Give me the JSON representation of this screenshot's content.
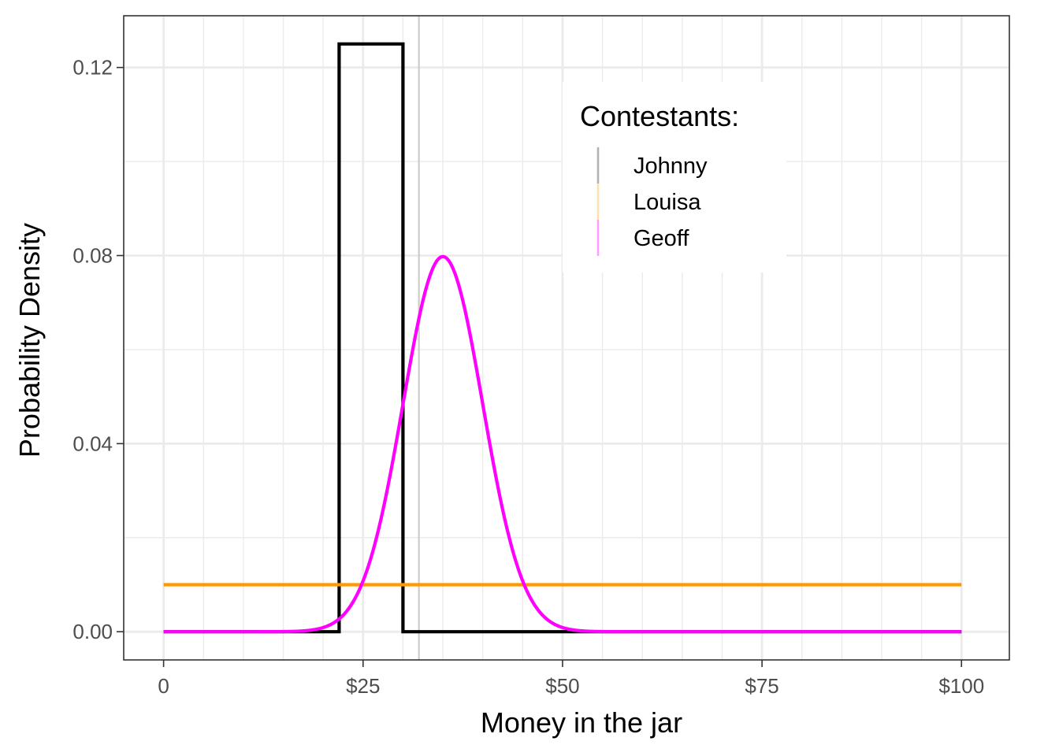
{
  "chart_data": {
    "type": "line",
    "xlabel": "Money in the jar",
    "ylabel": "Probability Density",
    "xlim": [
      -5,
      106
    ],
    "ylim": [
      -0.006,
      0.131
    ],
    "x_ticks": [
      {
        "value": 0,
        "label": "0"
      },
      {
        "value": 25,
        "label": "$25"
      },
      {
        "value": 50,
        "label": "$50"
      },
      {
        "value": 75,
        "label": "$75"
      },
      {
        "value": 100,
        "label": "$100"
      }
    ],
    "y_ticks": [
      {
        "value": 0,
        "label": "0.00"
      },
      {
        "value": 0.04,
        "label": "0.04"
      },
      {
        "value": 0.08,
        "label": "0.08"
      },
      {
        "value": 0.12,
        "label": "0.12"
      }
    ],
    "grid": true,
    "legend": {
      "title": "Contestants:",
      "placement": "top-right",
      "entries": [
        {
          "label": "Johnny",
          "color": "#b3b3b3"
        },
        {
          "label": "Louisa",
          "color": "#ffe0b0"
        },
        {
          "label": "Geoff",
          "color": "#ff9cff"
        }
      ]
    },
    "series": [
      {
        "color": "#000000",
        "kind": "step",
        "points": [
          [
            0,
            0
          ],
          [
            22,
            0
          ],
          [
            22,
            0.125
          ],
          [
            30,
            0.125
          ],
          [
            30,
            0
          ],
          [
            100,
            0
          ]
        ]
      },
      {
        "color": "#ff9900",
        "kind": "uniform",
        "points": [
          [
            0,
            0.01
          ],
          [
            100,
            0.01
          ]
        ]
      },
      {
        "color": "#ff00ff",
        "kind": "normal",
        "mean": 35,
        "sd": 5,
        "range": [
          0,
          100
        ]
      }
    ],
    "vlines": [
      {
        "x": 32,
        "color": "#cccccc"
      }
    ]
  }
}
